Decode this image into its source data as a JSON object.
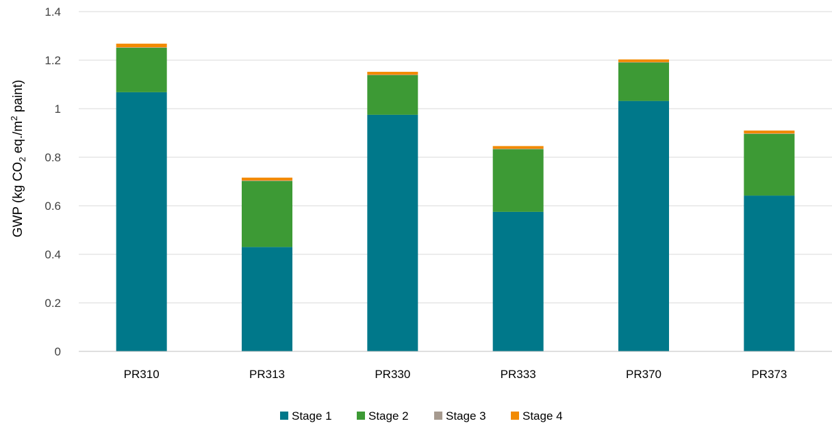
{
  "chart_data": {
    "type": "bar",
    "stacked": true,
    "categories": [
      "PR310",
      "PR313",
      "PR330",
      "PR333",
      "PR370",
      "PR373"
    ],
    "series": [
      {
        "name": "Stage 1",
        "color": "#00788A",
        "values": [
          1.068,
          0.43,
          0.975,
          0.575,
          1.032,
          0.642
        ]
      },
      {
        "name": "Stage 2",
        "color": "#3D9A35",
        "values": [
          0.183,
          0.272,
          0.163,
          0.258,
          0.158,
          0.254
        ]
      },
      {
        "name": "Stage 3",
        "color": "#A69A8F",
        "values": [
          0.002,
          0.002,
          0.002,
          0.002,
          0.002,
          0.002
        ]
      },
      {
        "name": "Stage 4",
        "color": "#F28A00",
        "values": [
          0.015,
          0.012,
          0.012,
          0.011,
          0.011,
          0.012
        ]
      }
    ],
    "ylabel": {
      "before": "GWP (kg CO",
      "sub": "2",
      "middle": " eq./m",
      "sup": "2",
      "after": " paint)"
    },
    "ylim": [
      0,
      1.4
    ],
    "yticks": [
      "0",
      "0.2",
      "0.4",
      "0.6",
      "0.8",
      "1",
      "1.2",
      "1.4"
    ],
    "grid": true,
    "legend_position": "bottom"
  }
}
